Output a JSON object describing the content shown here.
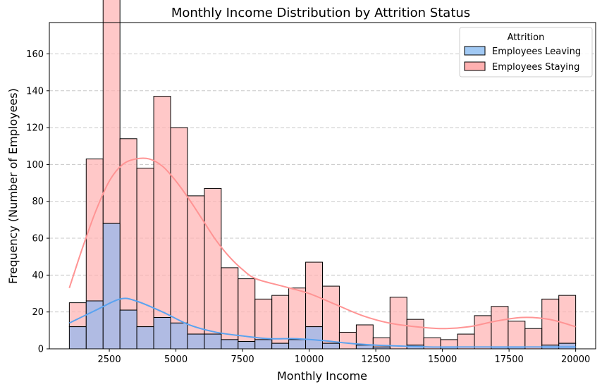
{
  "chart_data": {
    "type": "bar",
    "title": "Monthly Income Distribution by Attrition Status",
    "xlabel": "Monthly Income",
    "ylabel": "Frequency (Number of Employees)",
    "xlim": [
      250,
      20750
    ],
    "ylim": [
      0,
      177
    ],
    "x_ticks": [
      2500,
      5000,
      7500,
      10000,
      12500,
      15000,
      17500,
      20000
    ],
    "y_ticks": [
      0,
      20,
      40,
      60,
      80,
      100,
      120,
      140,
      160
    ],
    "grid": "y-dashed",
    "bin_edges": [
      1000,
      1633,
      2267,
      2900,
      3533,
      4167,
      4800,
      5433,
      6067,
      6700,
      7333,
      7967,
      8600,
      9233,
      9867,
      10500,
      11133,
      11767,
      12400,
      13033,
      13667,
      14300,
      14933,
      15567,
      16200,
      16833,
      17467,
      18100,
      18733,
      19367,
      20000
    ],
    "legend": {
      "title": "Attrition",
      "position": "top-right"
    },
    "series": [
      {
        "name": "Employees Leaving",
        "color": "#a1c9f4",
        "kde_color": "#5aa3f0",
        "values": [
          12,
          26,
          68,
          21,
          12,
          17,
          14,
          8,
          8,
          5,
          4,
          5,
          3,
          5,
          12,
          3,
          0,
          2,
          1,
          0,
          2,
          0,
          1,
          0,
          0,
          1,
          1,
          0,
          2,
          3
        ],
        "kde_x": [
          1000,
          2000,
          2900,
          3500,
          4500,
          5500,
          6500,
          7500,
          8500,
          9500,
          10500,
          11500,
          12500,
          13500,
          14500,
          15500,
          16500,
          17500,
          18500,
          19500,
          20000
        ],
        "kde_y": [
          14,
          21,
          27,
          26,
          20,
          13,
          9,
          7,
          5.5,
          5.5,
          4.5,
          3,
          2,
          1.5,
          1,
          1,
          1,
          1,
          1,
          1,
          1
        ]
      },
      {
        "name": "Employees Staying",
        "color": "#ffb0b0",
        "kde_color": "#ff9494",
        "values": [
          13,
          77,
          169,
          93,
          86,
          120,
          106,
          75,
          79,
          39,
          34,
          22,
          26,
          28,
          35,
          31,
          9,
          11,
          5,
          28,
          14,
          6,
          4,
          8,
          18,
          22,
          14,
          11,
          25,
          26
        ],
        "kde_x": [
          1000,
          1500,
          2000,
          2500,
          3000,
          3500,
          4000,
          4500,
          5000,
          5500,
          6000,
          6500,
          7000,
          7500,
          8000,
          9000,
          10000,
          11000,
          12000,
          13000,
          14000,
          15000,
          16000,
          17000,
          18000,
          19000,
          20000
        ],
        "kde_y": [
          33,
          55,
          75,
          91,
          100,
          103,
          103,
          99,
          91,
          81,
          70,
          59,
          50,
          43,
          38,
          34,
          30,
          24,
          18,
          14,
          12,
          11,
          12,
          15,
          17,
          16,
          12
        ]
      }
    ]
  }
}
